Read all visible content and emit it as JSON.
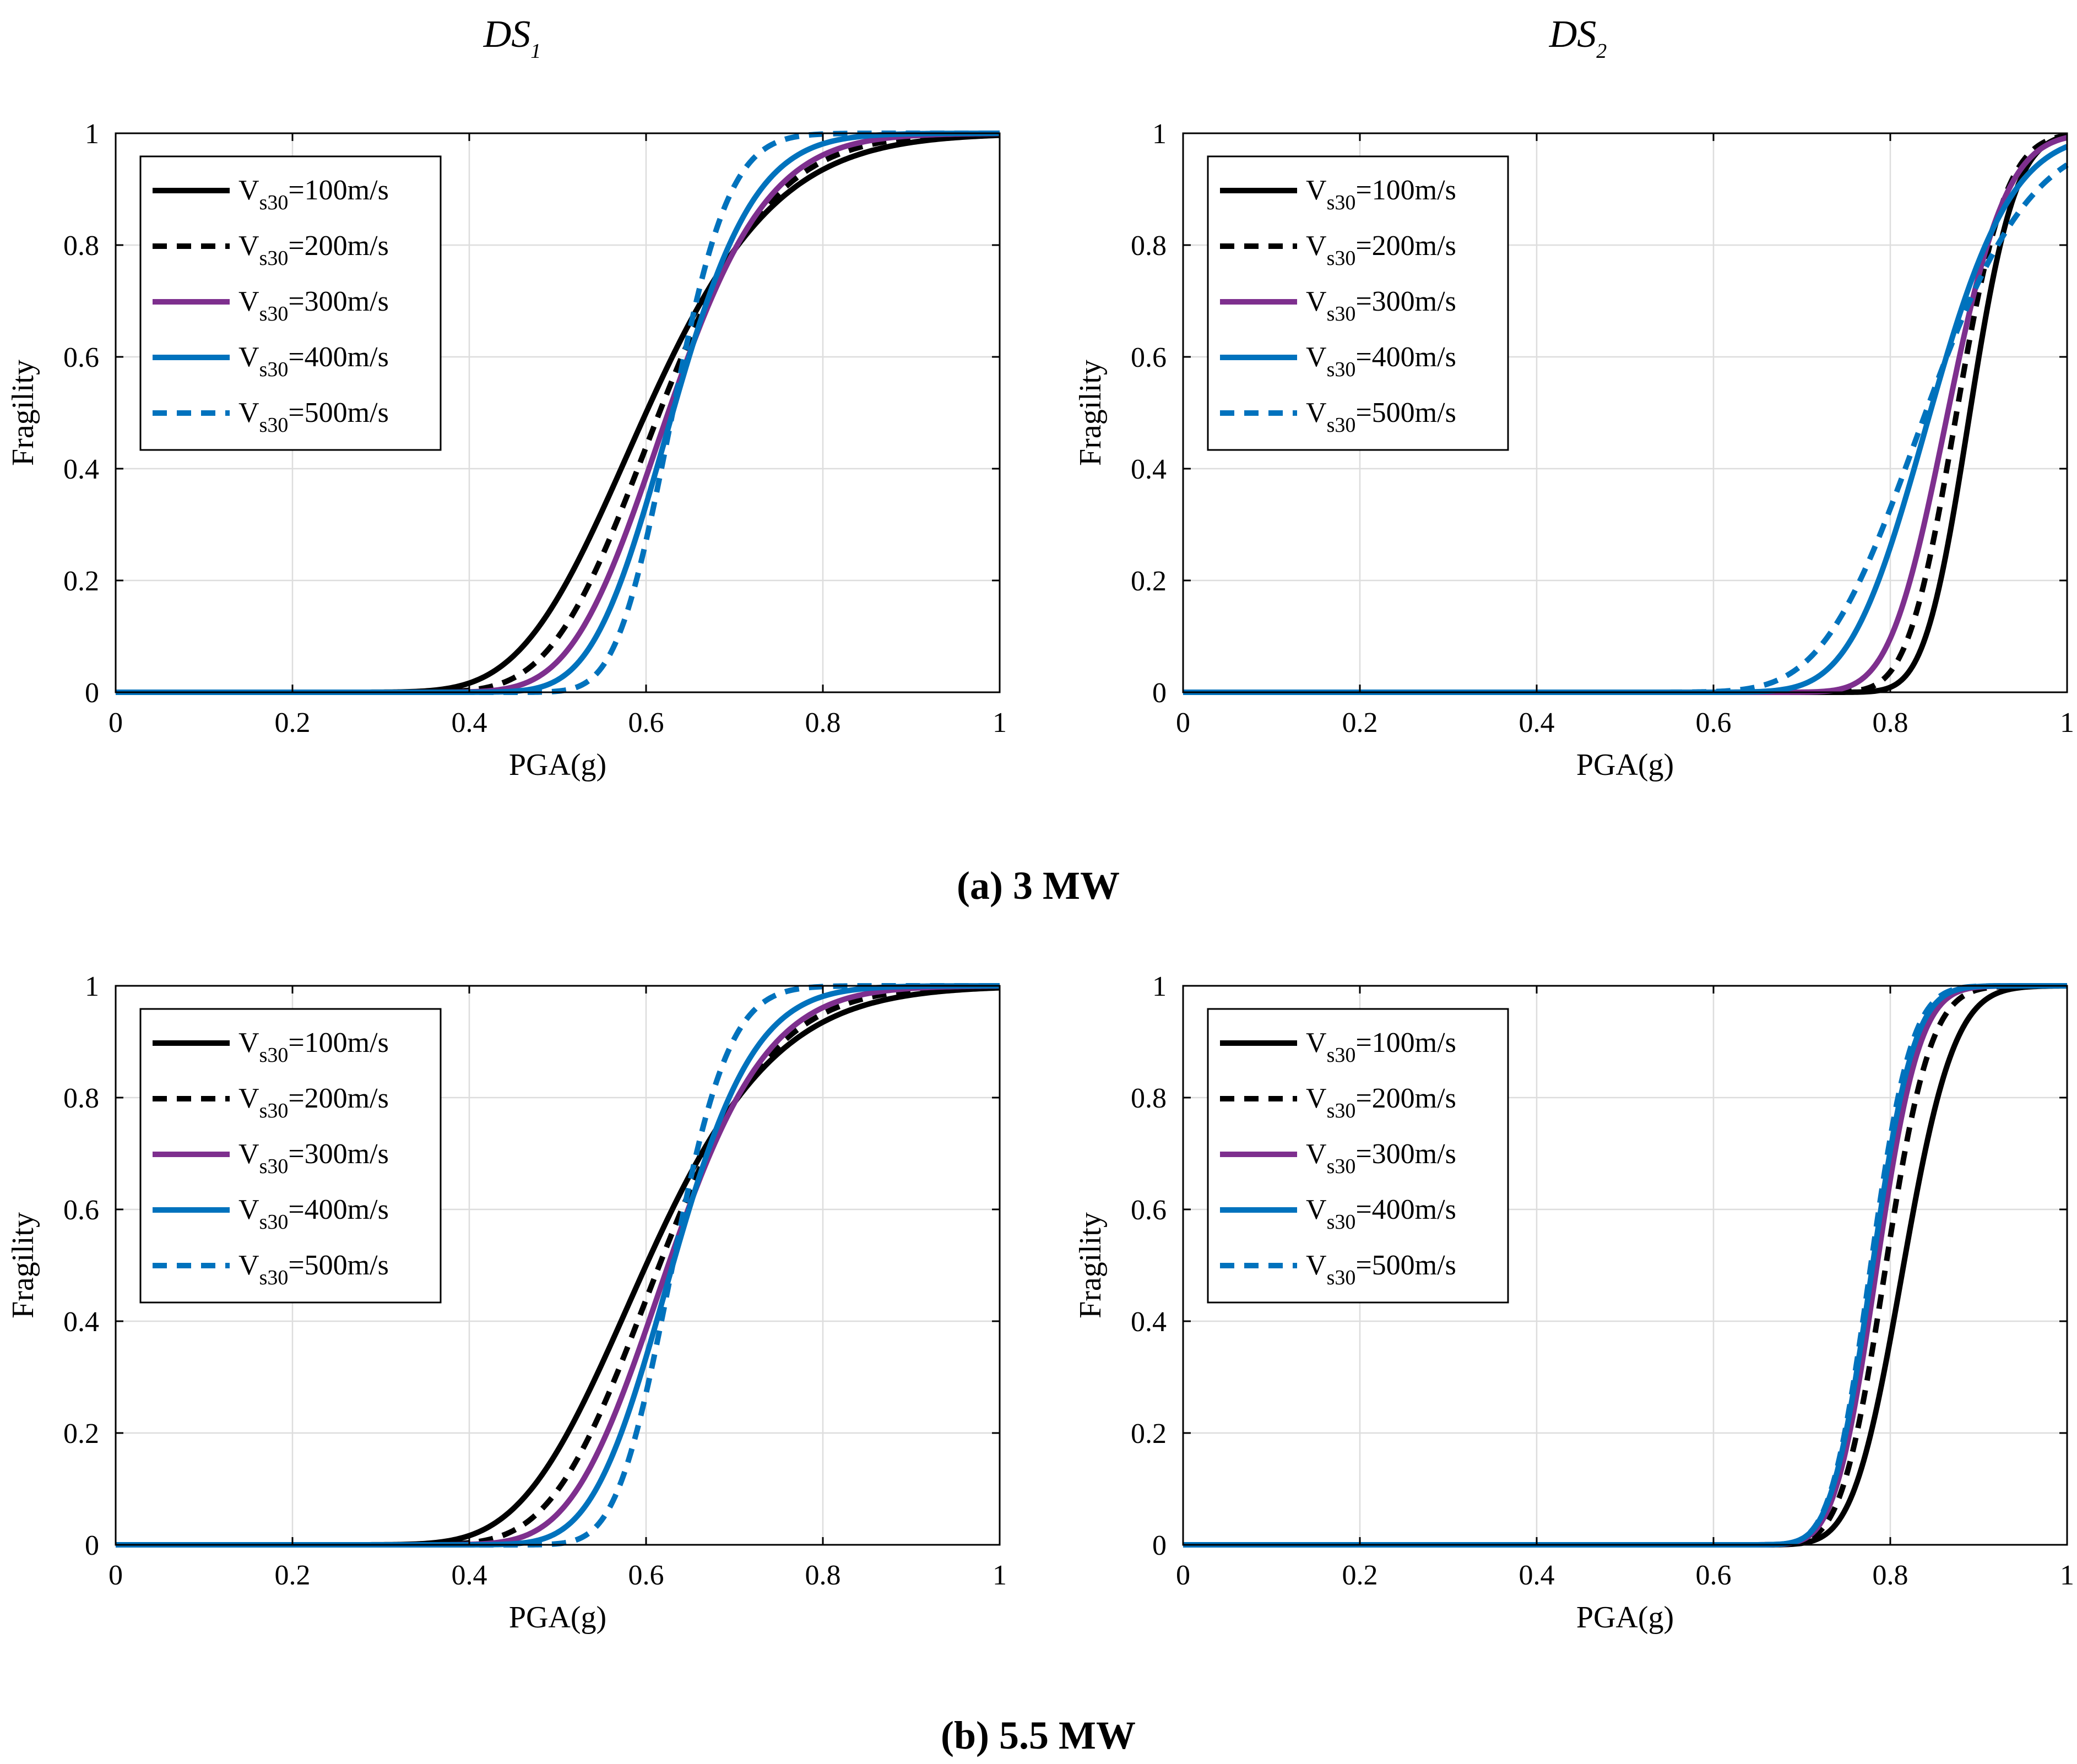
{
  "figure": {
    "column_titles": [
      {
        "main": "DS",
        "sub": "1"
      },
      {
        "main": "DS",
        "sub": "2"
      }
    ],
    "captions": [
      {
        "letter": "a",
        "rest": " 3 MW"
      },
      {
        "letter": "b",
        "rest": " 5.5 MW"
      }
    ]
  },
  "colors": {
    "v100": "#000000",
    "v200": "#000000",
    "v300": "#7E2F8E",
    "v400": "#0072BD",
    "v500": "#0072BD",
    "grid": "#dddddd"
  },
  "chart_data": [
    {
      "id": "a-ds1",
      "type": "line",
      "row": "(a) 3 MW",
      "title": "DS1",
      "xlabel": "PGA(g)",
      "ylabel": "Fragility",
      "xlim": [
        0,
        1
      ],
      "ylim": [
        0,
        1
      ],
      "xticks": [
        "0",
        "0.2",
        "0.4",
        "0.6",
        "0.8",
        "1"
      ],
      "yticks": [
        "0",
        "0.2",
        "0.4",
        "0.6",
        "0.8",
        "1"
      ],
      "grid": true,
      "legend_position": "top-left",
      "series": [
        {
          "key": "v100",
          "name_main": "V",
          "name_sub": "s30",
          "name_rest": "=100m/s",
          "style": "solid",
          "median": 0.6,
          "beta": 0.19
        },
        {
          "key": "v200",
          "name_main": "V",
          "name_sub": "s30",
          "name_rest": "=200m/s",
          "style": "dashed",
          "median": 0.615,
          "beta": 0.16
        },
        {
          "key": "v300",
          "name_main": "V",
          "name_sub": "s30",
          "name_rest": "=300m/s",
          "style": "solid",
          "median": 0.625,
          "beta": 0.14
        },
        {
          "key": "v400",
          "name_main": "V",
          "name_sub": "s30",
          "name_rest": "=400m/s",
          "style": "solid",
          "median": 0.63,
          "beta": 0.115
        },
        {
          "key": "v500",
          "name_main": "V",
          "name_sub": "s30",
          "name_rest": "=500m/s",
          "style": "dashed",
          "median": 0.63,
          "beta": 0.08
        }
      ]
    },
    {
      "id": "a-ds2",
      "type": "line",
      "row": "(a) 3 MW",
      "title": "DS2",
      "xlabel": "PGA(g)",
      "ylabel": "Fragility",
      "xlim": [
        0,
        1
      ],
      "ylim": [
        0,
        1
      ],
      "xticks": [
        "0",
        "0.2",
        "0.4",
        "0.6",
        "0.8",
        "1"
      ],
      "yticks": [
        "0",
        "0.2",
        "0.4",
        "0.6",
        "0.8",
        "1"
      ],
      "grid": true,
      "legend_position": "top-left",
      "series": [
        {
          "key": "v100",
          "name_main": "V",
          "name_sub": "s30",
          "name_rest": "=100m/s",
          "style": "solid",
          "median": 0.89,
          "beta": 0.045
        },
        {
          "key": "v200",
          "name_main": "V",
          "name_sub": "s30",
          "name_rest": "=200m/s",
          "style": "dashed",
          "median": 0.875,
          "beta": 0.05
        },
        {
          "key": "v300",
          "name_main": "V",
          "name_sub": "s30",
          "name_rest": "=300m/s",
          "style": "solid",
          "median": 0.865,
          "beta": 0.06
        },
        {
          "key": "v400",
          "name_main": "V",
          "name_sub": "s30",
          "name_rest": "=400m/s",
          "style": "solid",
          "median": 0.845,
          "beta": 0.085
        },
        {
          "key": "v500",
          "name_main": "V",
          "name_sub": "s30",
          "name_rest": "=500m/s",
          "style": "dashed",
          "median": 0.84,
          "beta": 0.11
        }
      ]
    },
    {
      "id": "b-ds1",
      "type": "line",
      "row": "(b) 5.5 MW",
      "title": "DS1",
      "xlabel": "PGA(g)",
      "ylabel": "Fragility",
      "xlim": [
        0,
        1
      ],
      "ylim": [
        0,
        1
      ],
      "xticks": [
        "0",
        "0.2",
        "0.4",
        "0.6",
        "0.8",
        "1"
      ],
      "yticks": [
        "0",
        "0.2",
        "0.4",
        "0.6",
        "0.8",
        "1"
      ],
      "grid": true,
      "legend_position": "top-left",
      "series": [
        {
          "key": "v100",
          "name_main": "V",
          "name_sub": "s30",
          "name_rest": "=100m/s",
          "style": "solid",
          "median": 0.6,
          "beta": 0.19
        },
        {
          "key": "v200",
          "name_main": "V",
          "name_sub": "s30",
          "name_rest": "=200m/s",
          "style": "dashed",
          "median": 0.615,
          "beta": 0.16
        },
        {
          "key": "v300",
          "name_main": "V",
          "name_sub": "s30",
          "name_rest": "=300m/s",
          "style": "solid",
          "median": 0.625,
          "beta": 0.14
        },
        {
          "key": "v400",
          "name_main": "V",
          "name_sub": "s30",
          "name_rest": "=400m/s",
          "style": "solid",
          "median": 0.63,
          "beta": 0.115
        },
        {
          "key": "v500",
          "name_main": "V",
          "name_sub": "s30",
          "name_rest": "=500m/s",
          "style": "dashed",
          "median": 0.63,
          "beta": 0.08
        }
      ]
    },
    {
      "id": "b-ds2",
      "type": "line",
      "row": "(b) 5.5 MW",
      "title": "DS2",
      "xlabel": "PGA(g)",
      "ylabel": "Fragility",
      "xlim": [
        0,
        1
      ],
      "ylim": [
        0,
        1
      ],
      "xticks": [
        "0",
        "0.2",
        "0.4",
        "0.6",
        "0.8",
        "1"
      ],
      "yticks": [
        "0",
        "0.2",
        "0.4",
        "0.6",
        "0.8",
        "1"
      ],
      "grid": true,
      "legend_position": "top-left",
      "series": [
        {
          "key": "v100",
          "name_main": "V",
          "name_sub": "s30",
          "name_rest": "=100m/s",
          "style": "solid",
          "median": 0.815,
          "beta": 0.055
        },
        {
          "key": "v200",
          "name_main": "V",
          "name_sub": "s30",
          "name_rest": "=200m/s",
          "style": "dashed",
          "median": 0.795,
          "beta": 0.05
        },
        {
          "key": "v300",
          "name_main": "V",
          "name_sub": "s30",
          "name_rest": "=300m/s",
          "style": "solid",
          "median": 0.785,
          "beta": 0.048
        },
        {
          "key": "v400",
          "name_main": "V",
          "name_sub": "s30",
          "name_rest": "=400m/s",
          "style": "solid",
          "median": 0.78,
          "beta": 0.047
        },
        {
          "key": "v500",
          "name_main": "V",
          "name_sub": "s30",
          "name_rest": "=500m/s",
          "style": "dashed",
          "median": 0.778,
          "beta": 0.046
        }
      ]
    }
  ]
}
